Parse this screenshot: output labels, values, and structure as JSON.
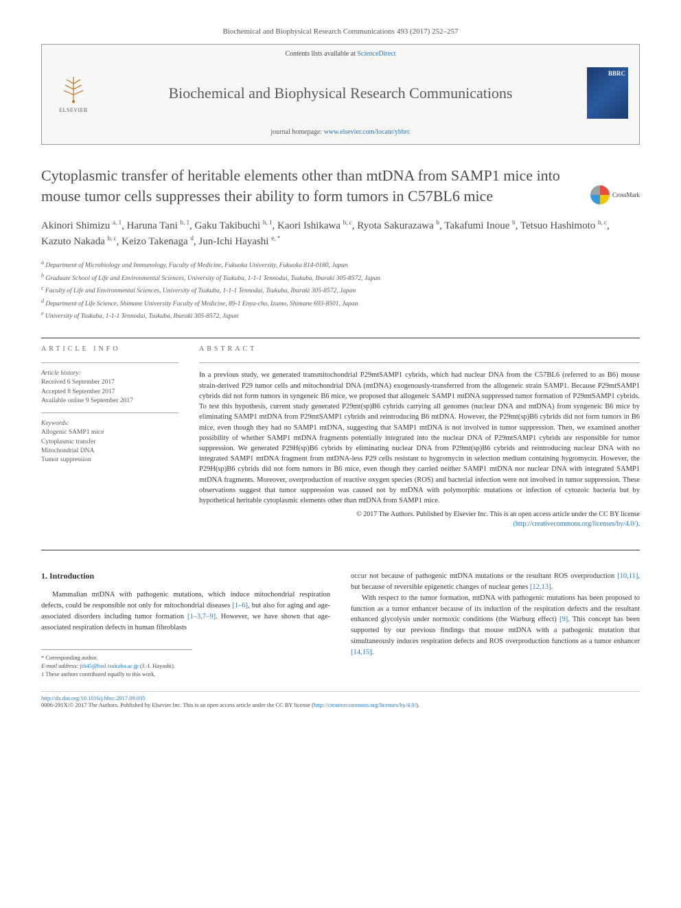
{
  "journal_ref": "Biochemical and Biophysical Research Communications 493 (2017) 252–257",
  "header": {
    "contents_line_pre": "Contents lists available at ",
    "contents_link": "ScienceDirect",
    "journal_name": "Biochemical and Biophysical Research Communications",
    "homepage_pre": "journal homepage: ",
    "homepage_url": "www.elsevier.com/locate/ybbrc",
    "elsevier_label": "ELSEVIER",
    "cover_text": "BBRC"
  },
  "crossmark": "CrossMark",
  "title": "Cytoplasmic transfer of heritable elements other than mtDNA from SAMP1 mice into mouse tumor cells suppresses their ability to form tumors in C57BL6 mice",
  "authors_html": "Akinori Shimizu <sup>a, 1</sup>, Haruna Tani <sup>b, 1</sup>, Gaku Takibuchi <sup>b, 1</sup>, Kaori Ishikawa <sup>b, c</sup>, Ryota Sakurazawa <sup>b</sup>, Takafumi Inoue <sup>b</sup>, Tetsuo Hashimoto <sup>b, c</sup>, Kazuto Nakada <sup>b, c</sup>, Keizo Takenaga <sup>d</sup>, Jun-Ichi Hayashi <sup>e, *</sup>",
  "affiliations": [
    "a Department of Microbiology and Immunology, Faculty of Medicine, Fukuoka University, Fukuoka 814-0180, Japan",
    "b Graduate School of Life and Environmental Sciences, University of Tsukuba, 1-1-1 Tennodai, Tsukuba, Ibaraki 305-8572, Japan",
    "c Faculty of Life and Environmental Sciences, University of Tsukuba, 1-1-1 Tennodai, Tsukuba, Ibaraki 305-8572, Japan",
    "d Department of Life Science, Shimane University Faculty of Medicine, 89-1 Enya-cho, Izumo, Shimane 693-8501, Japan",
    "e University of Tsukuba, 1-1-1 Tennodai, Tsukuba, Ibaraki 305-8572, Japan"
  ],
  "article_info": {
    "label": "ARTICLE INFO",
    "history_label": "Article history:",
    "history": [
      "Received 6 September 2017",
      "Accepted 8 September 2017",
      "Available online 9 September 2017"
    ],
    "keywords_label": "Keywords:",
    "keywords": [
      "Allogenic SAMP1 mice",
      "Cytoplasmic transfer",
      "Mitochondrial DNA",
      "Tumor suppression"
    ]
  },
  "abstract": {
    "label": "ABSTRACT",
    "text": "In a previous study, we generated transmitochondrial P29mtSAMP1 cybrids, which had nuclear DNA from the C57BL6 (referred to as B6) mouse strain-derived P29 tumor cells and mitochondrial DNA (mtDNA) exogenously-transferred from the allogeneic strain SAMP1. Because P29mtSAMP1 cybrids did not form tumors in syngeneic B6 mice, we proposed that allogeneic SAMP1 mtDNA suppressed tumor formation of P29mtSAMP1 cybrids. To test this hypothesis, current study generated P29mt(sp)B6 cybrids carrying all genomes (nuclear DNA and mtDNA) from syngeneic B6 mice by eliminating SAMP1 mtDNA from P29mtSAMP1 cybrids and reintroducing B6 mtDNA. However, the P29mt(sp)B6 cybrids did not form tumors in B6 mice, even though they had no SAMP1 mtDNA, suggesting that SAMP1 mtDNA is not involved in tumor suppression. Then, we examined another possibility of whether SAMP1 mtDNA fragments potentially integrated into the nuclear DNA of P29mtSAMP1 cybrids are responsible for tumor suppression. We generated P29H(sp)B6 cybrids by eliminating nuclear DNA from P29mt(sp)B6 cybrids and reintroducing nuclear DNA with no integrated SAMP1 mtDNA fragment from mtDNA-less P29 cells resistant to hygromycin in selection medium containing hygromycin. However, the P29H(sp)B6 cybrids did not form tumors in B6 mice, even though they carried neither SAMP1 mtDNA nor nuclear DNA with integrated SAMP1 mtDNA fragments. Moreover, overproduction of reactive oxygen species (ROS) and bacterial infection were not involved in tumor suppression. These observations suggest that tumor suppression was caused not by mtDNA with polymorphic mutations or infection of cytozoic bacteria but by hypothetical heritable cytoplasmic elements other than mtDNA from SAMP1 mice.",
    "copyright_line1": "© 2017 The Authors. Published by Elsevier Inc. This is an open access article under the CC BY license",
    "copyright_link": "(http://creativecommons.org/licenses/by/4.0/)"
  },
  "introduction": {
    "heading": "1. Introduction",
    "para1_pre": "Mammalian mtDNA with pathogenic mutations, which induce mitochondrial respiration defects, could be responsible not only for mitochondrial diseases ",
    "para1_ref1": "[1–6]",
    "para1_mid": ", but also for aging and age-associated disorders including tumor formation ",
    "para1_ref2": "[1–3,7–9]",
    "para1_post": ". However, we have shown that age-associated respiration defects in human fibroblasts",
    "para2_pre": "occur not because of pathogenic mtDNA mutations or the resultant ROS overproduction ",
    "para2_ref1": "[10,11]",
    "para2_mid": ", but because of reversible epigenetic changes of nuclear genes ",
    "para2_ref2": "[12,13]",
    "para2_post": ".",
    "para3_pre": "With respect to the tumor formation, mtDNA with pathogenic mutations has been proposed to function as a tumor enhancer because of its induction of the respiration defects and the resultant enhanced glycolysis under normoxic conditions (the Warburg effect) ",
    "para3_ref1": "[9]",
    "para3_mid": ". This concept has been supported by our previous findings that mouse mtDNA with a pathogenic mutation that simultaneously induces respiration defects and ROS overproduction functions as a tumor enhancer ",
    "para3_ref2": "[14,15]",
    "para3_post": "."
  },
  "footnotes": {
    "corresponding": "* Corresponding author.",
    "email_label": "E-mail address: ",
    "email": "jih45@biol.tsukuba.ac.jp",
    "email_post": " (J.-I. Hayashi).",
    "equal": "1 These authors contributed equally to this work."
  },
  "bottom": {
    "doi": "http://dx.doi.org/10.1016/j.bbrc.2017.09.035",
    "issn_line_pre": "0006-291X/© 2017 The Authors. Published by Elsevier Inc. This is an open access article under the CC BY license (",
    "issn_link": "http://creativecommons.org/licenses/by/4.0/",
    "issn_line_post": ")."
  },
  "colors": {
    "link": "#2878b8",
    "text": "#333333",
    "muted": "#555555",
    "border": "#999999"
  },
  "typography": {
    "title_fontsize": 22,
    "body_fontsize": 10.5,
    "abstract_fontsize": 10.5,
    "footnote_fontsize": 8.5
  }
}
